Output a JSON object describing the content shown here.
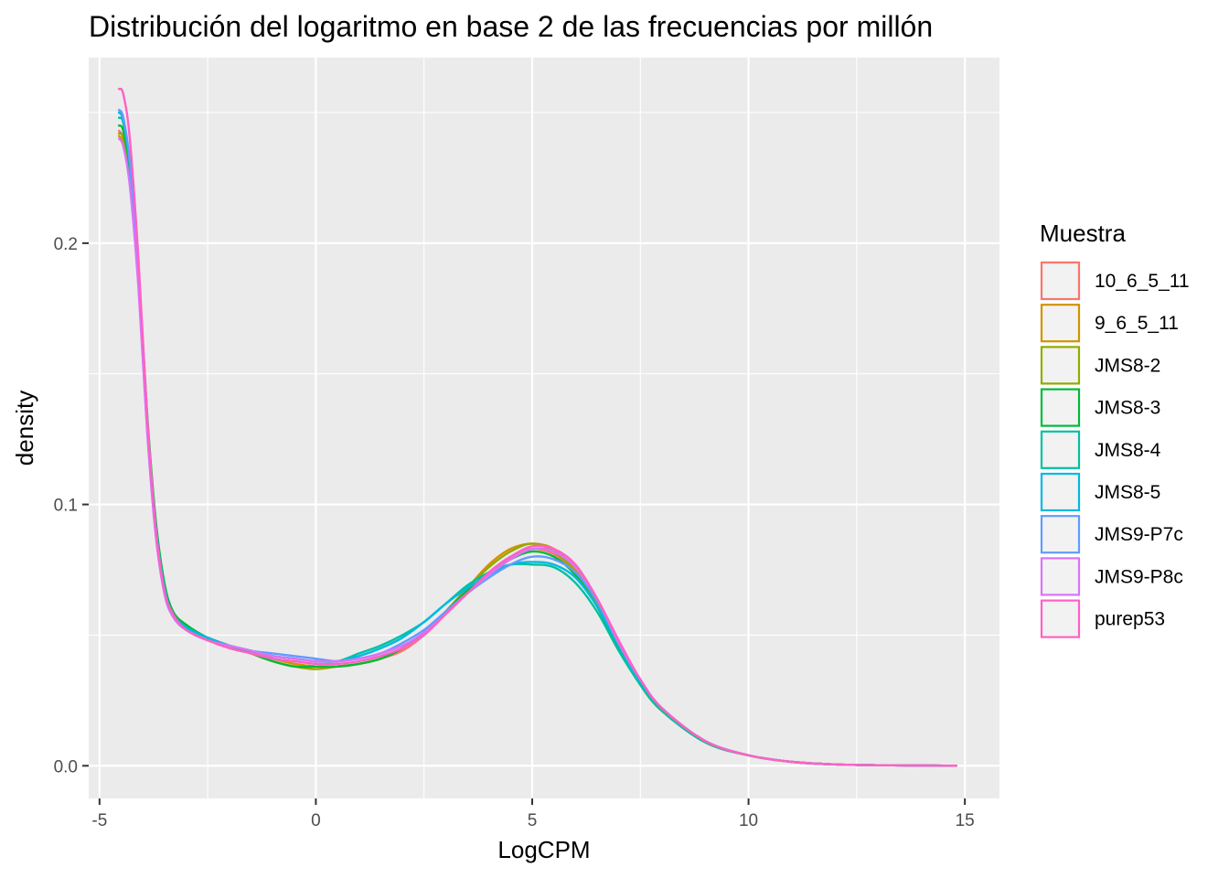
{
  "chart_data": {
    "type": "line",
    "title": "Distribución del logaritmo en base 2 de las frecuencias por millón",
    "xlabel": "LogCPM",
    "ylabel": "density",
    "xlim": [
      -5.25,
      15.8
    ],
    "ylim": [
      -0.0125,
      0.271
    ],
    "xticks": [
      -5,
      0,
      5,
      10,
      15
    ],
    "xtick_labels": [
      "-5",
      "0",
      "5",
      "10",
      "15"
    ],
    "yticks": [
      0.0,
      0.1,
      0.2
    ],
    "ytick_labels": [
      "0.0",
      "0.1",
      "0.2"
    ],
    "grid": true,
    "legend": {
      "title": "Muestra",
      "placement": "right"
    },
    "x": [
      -4.55,
      -4.45,
      -4.3,
      -4.1,
      -3.9,
      -3.7,
      -3.5,
      -3.3,
      -3.0,
      -2.5,
      -2.0,
      -1.5,
      -1.0,
      -0.5,
      0,
      0.5,
      1.0,
      1.5,
      2.0,
      2.5,
      3.0,
      3.5,
      4.0,
      4.5,
      5.0,
      5.5,
      6.0,
      6.5,
      7.0,
      7.5,
      8.0,
      9.0,
      10.0,
      11.0,
      12.0,
      13.0,
      14.0,
      14.8
    ],
    "series": [
      {
        "name": "10_6_5_11",
        "color": "#F8766D",
        "values": [
          0.243,
          0.24,
          0.225,
          0.185,
          0.13,
          0.09,
          0.067,
          0.058,
          0.053,
          0.049,
          0.046,
          0.044,
          0.041,
          0.039,
          0.038,
          0.038,
          0.039,
          0.041,
          0.044,
          0.05,
          0.058,
          0.066,
          0.074,
          0.08,
          0.083,
          0.081,
          0.074,
          0.062,
          0.045,
          0.031,
          0.021,
          0.009,
          0.004,
          0.0015,
          0.0005,
          0.0002,
          0.0001,
          0.0
        ]
      },
      {
        "name": "9_6_5_11",
        "color": "#D39200",
        "values": [
          0.241,
          0.238,
          0.223,
          0.184,
          0.129,
          0.089,
          0.067,
          0.058,
          0.053,
          0.049,
          0.046,
          0.043,
          0.041,
          0.039,
          0.038,
          0.038,
          0.039,
          0.041,
          0.045,
          0.051,
          0.059,
          0.068,
          0.077,
          0.083,
          0.085,
          0.083,
          0.075,
          0.062,
          0.045,
          0.031,
          0.021,
          0.009,
          0.004,
          0.0015,
          0.0005,
          0.0002,
          0.0001,
          0.0
        ]
      },
      {
        "name": "JMS8-2",
        "color": "#93AA00",
        "values": [
          0.242,
          0.24,
          0.225,
          0.186,
          0.131,
          0.091,
          0.068,
          0.058,
          0.053,
          0.049,
          0.046,
          0.043,
          0.04,
          0.038,
          0.037,
          0.038,
          0.039,
          0.041,
          0.045,
          0.051,
          0.059,
          0.068,
          0.076,
          0.082,
          0.085,
          0.082,
          0.074,
          0.061,
          0.045,
          0.031,
          0.021,
          0.009,
          0.004,
          0.0015,
          0.0005,
          0.0002,
          0.0001,
          0.0
        ]
      },
      {
        "name": "JMS8-3",
        "color": "#00BA38",
        "values": [
          0.245,
          0.243,
          0.228,
          0.19,
          0.135,
          0.094,
          0.07,
          0.059,
          0.054,
          0.049,
          0.046,
          0.043,
          0.04,
          0.038,
          0.038,
          0.038,
          0.039,
          0.041,
          0.045,
          0.051,
          0.059,
          0.067,
          0.074,
          0.079,
          0.082,
          0.08,
          0.073,
          0.061,
          0.045,
          0.031,
          0.021,
          0.009,
          0.004,
          0.0015,
          0.0005,
          0.0002,
          0.0001,
          0.0
        ]
      },
      {
        "name": "JMS8-4",
        "color": "#00C19F",
        "values": [
          0.248,
          0.246,
          0.23,
          0.19,
          0.133,
          0.092,
          0.068,
          0.058,
          0.053,
          0.049,
          0.046,
          0.044,
          0.042,
          0.041,
          0.04,
          0.04,
          0.043,
          0.046,
          0.05,
          0.055,
          0.062,
          0.069,
          0.074,
          0.077,
          0.077,
          0.076,
          0.07,
          0.059,
          0.044,
          0.031,
          0.021,
          0.009,
          0.004,
          0.0015,
          0.0005,
          0.0002,
          0.0001,
          0.0
        ]
      },
      {
        "name": "JMS8-5",
        "color": "#00B9E3",
        "values": [
          0.25,
          0.247,
          0.231,
          0.19,
          0.132,
          0.091,
          0.068,
          0.058,
          0.053,
          0.049,
          0.046,
          0.044,
          0.042,
          0.041,
          0.04,
          0.04,
          0.042,
          0.045,
          0.049,
          0.055,
          0.062,
          0.068,
          0.073,
          0.077,
          0.078,
          0.077,
          0.072,
          0.061,
          0.046,
          0.032,
          0.022,
          0.0095,
          0.004,
          0.0015,
          0.0005,
          0.0002,
          0.0001,
          0.0
        ]
      },
      {
        "name": "JMS9-P7c",
        "color": "#619CFF",
        "values": [
          0.251,
          0.248,
          0.231,
          0.188,
          0.13,
          0.089,
          0.066,
          0.057,
          0.052,
          0.048,
          0.046,
          0.044,
          0.043,
          0.042,
          0.041,
          0.04,
          0.041,
          0.043,
          0.047,
          0.052,
          0.059,
          0.066,
          0.072,
          0.077,
          0.08,
          0.079,
          0.074,
          0.063,
          0.047,
          0.033,
          0.022,
          0.0095,
          0.004,
          0.0015,
          0.0005,
          0.0002,
          0.0001,
          0.0
        ]
      },
      {
        "name": "JMS9-P8c",
        "color": "#DB72FB",
        "values": [
          0.24,
          0.237,
          0.222,
          0.183,
          0.128,
          0.088,
          0.066,
          0.057,
          0.052,
          0.048,
          0.046,
          0.044,
          0.042,
          0.041,
          0.04,
          0.04,
          0.041,
          0.043,
          0.046,
          0.051,
          0.058,
          0.066,
          0.073,
          0.079,
          0.083,
          0.082,
          0.076,
          0.064,
          0.047,
          0.033,
          0.022,
          0.0095,
          0.004,
          0.0015,
          0.0005,
          0.0002,
          0.0001,
          0.0
        ]
      },
      {
        "name": "purep53",
        "color": "#FF61C3",
        "values": [
          0.259,
          0.257,
          0.24,
          0.194,
          0.134,
          0.091,
          0.067,
          0.058,
          0.052,
          0.048,
          0.045,
          0.043,
          0.041,
          0.04,
          0.039,
          0.039,
          0.04,
          0.042,
          0.045,
          0.05,
          0.058,
          0.066,
          0.074,
          0.08,
          0.084,
          0.083,
          0.077,
          0.064,
          0.048,
          0.033,
          0.022,
          0.0095,
          0.004,
          0.0015,
          0.0005,
          0.0002,
          0.0001,
          0.0
        ]
      }
    ]
  }
}
